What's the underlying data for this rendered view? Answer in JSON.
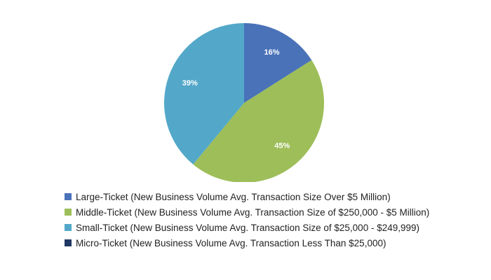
{
  "chart_data": {
    "type": "pie",
    "title": "",
    "slices": [
      {
        "name": "Large-Ticket (New Business Volume Avg. Transaction Size Over $5 Million)",
        "value": 16,
        "label": "16%",
        "color": "#4A72B8"
      },
      {
        "name": "Middle-Ticket (New Business Volume Avg. Transaction Size of $250,000 - $5 Million)",
        "value": 45,
        "label": "45%",
        "color": "#9DBE59"
      },
      {
        "name": "Small-Ticket (New Business Volume Avg. Transaction Size of $25,000 - $249,999)",
        "value": 39,
        "label": "39%",
        "color": "#53A8C9"
      },
      {
        "name": "Micro-Ticket (New Business Volume Avg. Transaction Less Than $25,000)",
        "value": 0,
        "label": "",
        "color": "#1F3864"
      }
    ],
    "legend_position": "bottom-left",
    "start_angle": "top",
    "direction": "clockwise"
  }
}
